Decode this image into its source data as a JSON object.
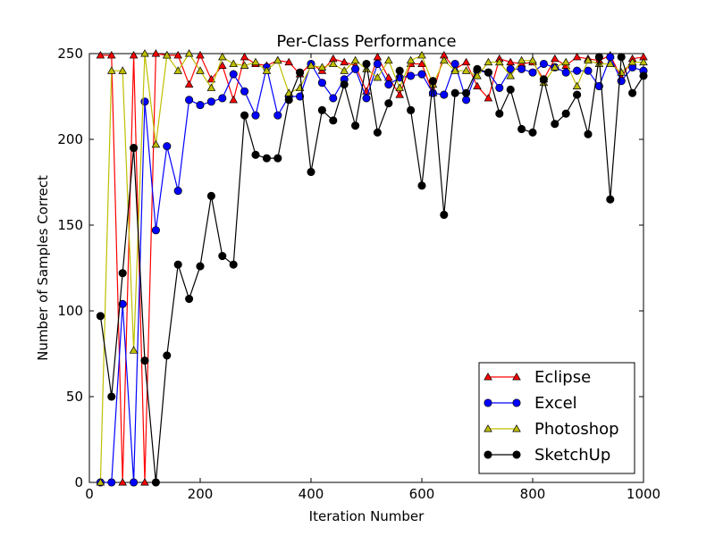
{
  "chart_data": {
    "type": "line",
    "title": "Per-Class Performance",
    "xlabel": "Iteration Number",
    "ylabel": "Number of Samples Correct",
    "xlim": [
      0,
      1000
    ],
    "ylim": [
      0,
      250
    ],
    "xticks": [
      0,
      200,
      400,
      600,
      800,
      1000
    ],
    "yticks": [
      0,
      50,
      100,
      150,
      200,
      250
    ],
    "grid": false,
    "legend_position": "lower-right",
    "x": [
      20,
      40,
      60,
      80,
      100,
      120,
      140,
      160,
      180,
      200,
      220,
      240,
      260,
      280,
      300,
      320,
      340,
      360,
      380,
      400,
      420,
      440,
      460,
      480,
      500,
      520,
      540,
      560,
      580,
      600,
      620,
      640,
      660,
      680,
      700,
      720,
      740,
      760,
      780,
      800,
      820,
      840,
      860,
      880,
      900,
      920,
      940,
      960,
      980,
      1000
    ],
    "series": [
      {
        "name": "Eclipse",
        "marker": "triangle",
        "color": "#ff0000",
        "line_color": "#ff0000",
        "values": [
          249,
          249,
          0,
          249,
          0,
          250,
          249,
          249,
          232,
          249,
          235,
          243,
          223,
          248,
          244,
          243,
          246,
          245,
          238,
          244,
          240,
          247,
          245,
          243,
          228,
          248,
          236,
          226,
          244,
          244,
          227,
          249,
          241,
          245,
          231,
          224,
          247,
          245,
          244,
          245,
          235,
          247,
          243,
          248,
          247,
          246,
          249,
          236,
          247,
          248
        ]
      },
      {
        "name": "Excel",
        "marker": "circle",
        "color": "#0000ff",
        "line_color": "#0000ff",
        "values": [
          0,
          0,
          104,
          0,
          222,
          147,
          196,
          170,
          223,
          220,
          222,
          224,
          238,
          228,
          214,
          242,
          214,
          225,
          225,
          244,
          233,
          224,
          235,
          241,
          224,
          244,
          232,
          236,
          237,
          238,
          227,
          226,
          244,
          223,
          240,
          239,
          230,
          241,
          241,
          239,
          244,
          242,
          239,
          240,
          240,
          231,
          248,
          234,
          242,
          240
        ]
      },
      {
        "name": "Photoshop",
        "marker": "triangle",
        "color": "#bfbf00",
        "line_color": "#bfbf00",
        "values": [
          0,
          240,
          240,
          77,
          250,
          197,
          249,
          240,
          250,
          240,
          230,
          248,
          244,
          243,
          245,
          240,
          246,
          227,
          230,
          243,
          242,
          244,
          240,
          246,
          241,
          236,
          246,
          230,
          246,
          249,
          232,
          246,
          240,
          240,
          237,
          245,
          245,
          237,
          246,
          246,
          233,
          242,
          245,
          231,
          246,
          244,
          244,
          239,
          245,
          245
        ]
      },
      {
        "name": "SketchUp",
        "marker": "circle",
        "color": "#000000",
        "line_color": "#000000",
        "values": [
          97,
          50,
          122,
          195,
          71,
          0,
          74,
          127,
          107,
          126,
          167,
          132,
          127,
          214,
          191,
          189,
          189,
          223,
          239,
          181,
          217,
          211,
          232,
          208,
          244,
          204,
          221,
          240,
          217,
          173,
          234,
          156,
          227,
          227,
          241,
          239,
          215,
          229,
          206,
          204,
          235,
          209,
          215,
          226,
          203,
          248,
          165,
          248,
          227,
          237
        ]
      }
    ]
  }
}
